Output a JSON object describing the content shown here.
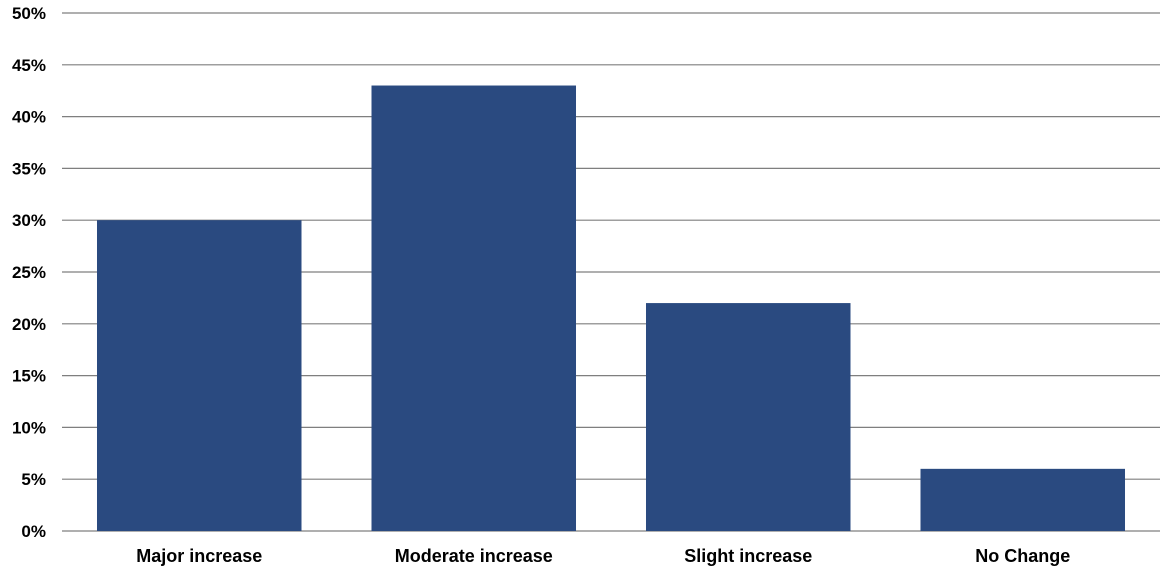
{
  "chart_data": {
    "type": "bar",
    "categories": [
      "Major increase",
      "Moderate increase",
      "Slight increase",
      "No Change"
    ],
    "values": [
      30,
      43,
      22,
      6
    ],
    "ylim": [
      0,
      50
    ],
    "y_ticks": [
      0,
      5,
      10,
      15,
      20,
      25,
      30,
      35,
      40,
      45,
      50
    ],
    "y_tick_labels": [
      "0%",
      "5%",
      "10%",
      "15%",
      "20%",
      "25%",
      "30%",
      "35%",
      "40%",
      "45%",
      "50%"
    ],
    "bar_color": "#2a4a80",
    "grid": true,
    "legend": "none"
  }
}
